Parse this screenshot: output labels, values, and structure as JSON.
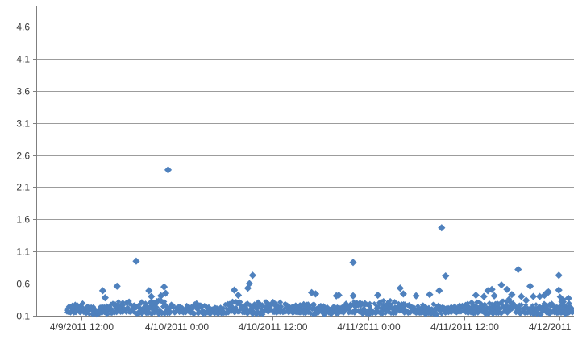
{
  "style": {
    "marker_color": "#4f81bd",
    "gridline_color": "#9c9c9c",
    "axis_line_color": "#7f7f7f",
    "label_color": "#3a3a3a",
    "background_color": "#ffffff"
  },
  "chart_data": {
    "type": "scatter",
    "title": "",
    "legend": "none",
    "grid": "horizontal",
    "marker_shape": "diamond",
    "y_axis": {
      "min": 0.1,
      "max": 4.6,
      "tick_step": 0.5,
      "tick_labels": [
        "0.1",
        "0.6",
        "1.1",
        "1.6",
        "2.1",
        "2.6",
        "3.1",
        "3.6",
        "4.1",
        "4.6"
      ]
    },
    "x_axis": {
      "tick_labels": [
        "4/9/2011 12:00",
        "4/10/2011 0:00",
        "4/10/2011 12:00",
        "4/11/2011 0:00",
        "4/11/2011 12:00",
        "4/12/2011"
      ],
      "first_tick_time": "4/9/2011 12:00",
      "tick_interval_hours": 12
    },
    "series": [
      {
        "name": "series-1",
        "color": "#4f81bd",
        "dense_band": {
          "comment": "thousands of readings forming a continuous band; hours measured from 4/9/2011 12:00",
          "start_hours": -1.8,
          "end_hours": 61.6,
          "value_bottom": 0.13,
          "value_top_mean": 0.3,
          "value_top_max": 0.37
        },
        "end_cluster": {
          "start_hours": 60.0,
          "end_hours": 61.4,
          "value_min": 0.12,
          "value_max": 0.4
        },
        "outliers_hours_value": [
          [
            2.7,
            0.49
          ],
          [
            3.0,
            0.38
          ],
          [
            4.5,
            0.56
          ],
          [
            6.9,
            0.95
          ],
          [
            8.5,
            0.49
          ],
          [
            8.8,
            0.4
          ],
          [
            10.0,
            0.41
          ],
          [
            10.4,
            0.55
          ],
          [
            10.6,
            0.45
          ],
          [
            10.9,
            2.37
          ],
          [
            19.2,
            0.5
          ],
          [
            19.7,
            0.42
          ],
          [
            20.9,
            0.53
          ],
          [
            21.1,
            0.6
          ],
          [
            21.5,
            0.73
          ],
          [
            28.9,
            0.46
          ],
          [
            29.4,
            0.44
          ],
          [
            32.0,
            0.41
          ],
          [
            32.3,
            0.42
          ],
          [
            34.1,
            0.93
          ],
          [
            34.1,
            0.41
          ],
          [
            37.2,
            0.42
          ],
          [
            40.0,
            0.53
          ],
          [
            40.4,
            0.44
          ],
          [
            42.0,
            0.41
          ],
          [
            43.7,
            0.43
          ],
          [
            44.9,
            0.49
          ],
          [
            45.2,
            1.47
          ],
          [
            45.7,
            0.72
          ],
          [
            49.5,
            0.42
          ],
          [
            50.5,
            0.4
          ],
          [
            51.0,
            0.49
          ],
          [
            51.5,
            0.51
          ],
          [
            51.8,
            0.41
          ],
          [
            52.7,
            0.58
          ],
          [
            53.4,
            0.51
          ],
          [
            54.0,
            0.43
          ],
          [
            54.8,
            0.82
          ],
          [
            55.2,
            0.4
          ],
          [
            55.8,
            0.34
          ],
          [
            56.3,
            0.56
          ],
          [
            56.7,
            0.4
          ],
          [
            57.5,
            0.4
          ],
          [
            58.1,
            0.42
          ],
          [
            58.4,
            0.46
          ],
          [
            58.6,
            0.47
          ],
          [
            59.9,
            0.5
          ],
          [
            59.9,
            0.73
          ]
        ]
      }
    ]
  }
}
